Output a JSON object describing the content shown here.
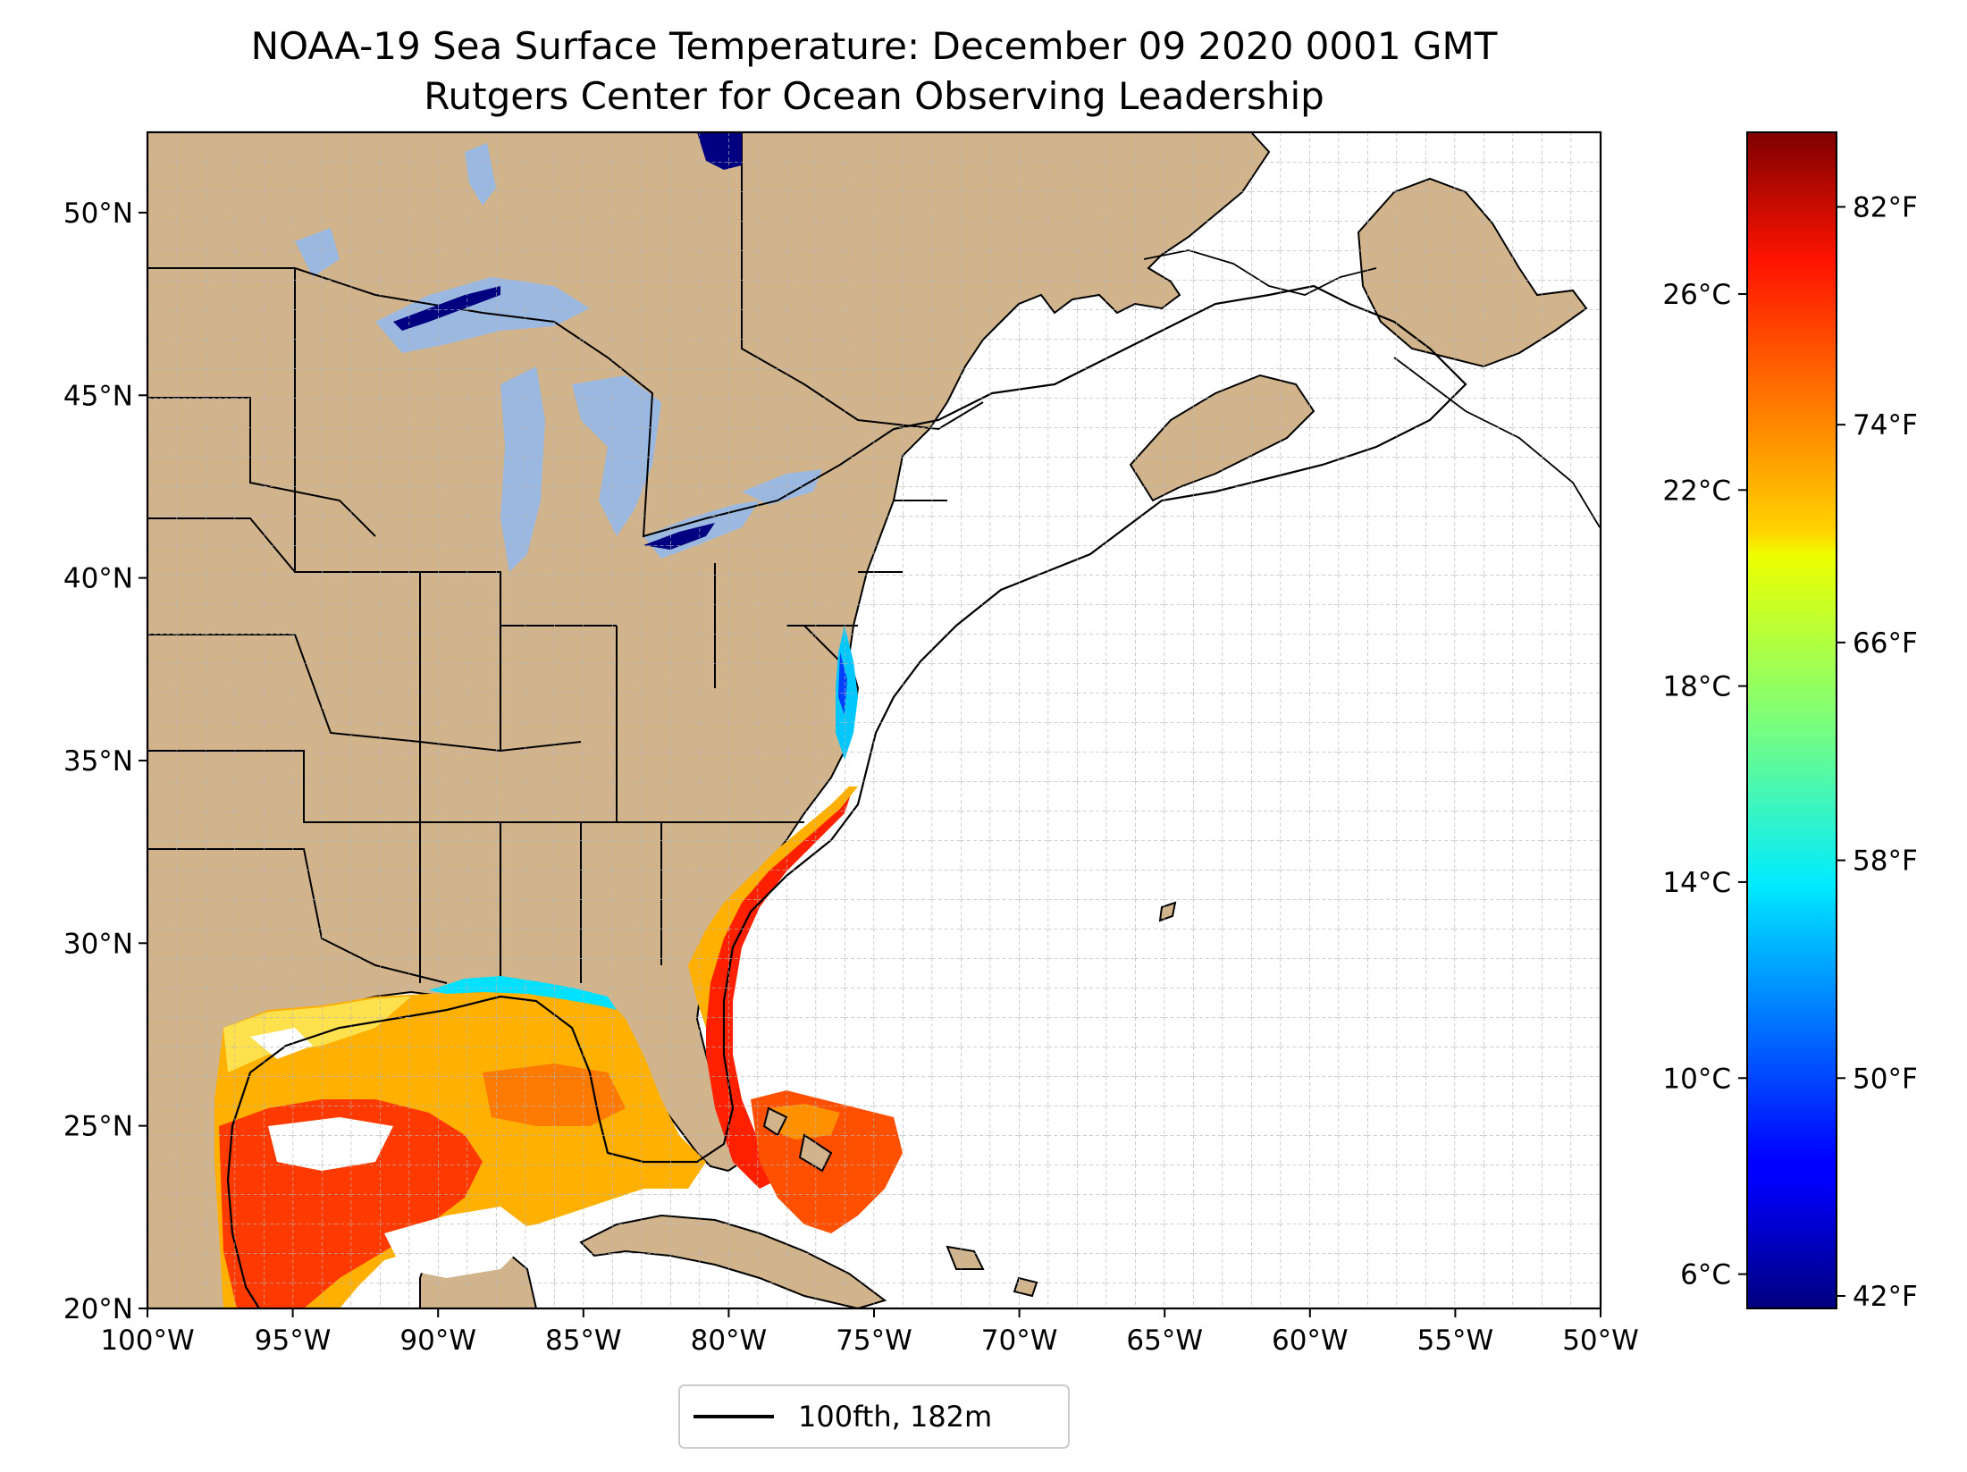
{
  "title": {
    "line1": "NOAA-19 Sea Surface Temperature: December 09 2020 0001 GMT",
    "line2": "Rutgers Center for Ocean Observing Leadership"
  },
  "map": {
    "lon_range": [
      -100,
      -50
    ],
    "lat_range": [
      20,
      52.2
    ],
    "x_ticks": [
      "100°W",
      "95°W",
      "90°W",
      "85°W",
      "80°W",
      "75°W",
      "70°W",
      "65°W",
      "60°W",
      "55°W",
      "50°W"
    ],
    "y_ticks": [
      "20°N",
      "25°N",
      "30°N",
      "35°N",
      "40°N",
      "45°N",
      "50°N"
    ],
    "grid": true,
    "colors": {
      "land": "#d2b48c",
      "lakes": "#9ab8e0",
      "ocean_no_data": "#ffffff",
      "gridlines": "#b0b0b0"
    }
  },
  "colorbar": {
    "celsius_ticks": [
      "6°C",
      "10°C",
      "14°C",
      "18°C",
      "22°C",
      "26°C"
    ],
    "fahrenheit_ticks": [
      "42°F",
      "50°F",
      "58°F",
      "66°F",
      "74°F",
      "82°F"
    ],
    "colormap": "jet"
  },
  "legend": {
    "entry": "100fth, 182m"
  }
}
